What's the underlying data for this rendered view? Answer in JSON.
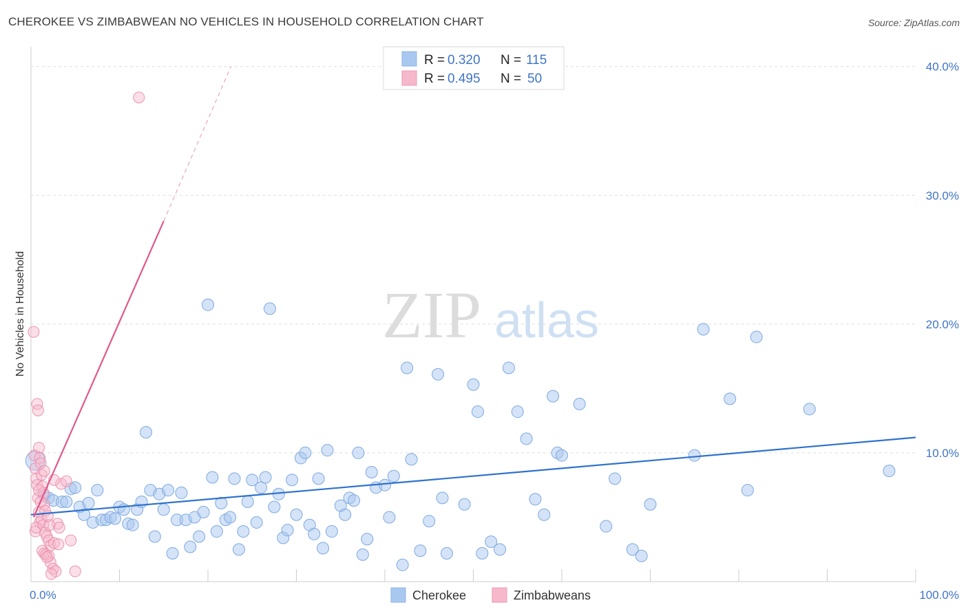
{
  "title": "CHEROKEE VS ZIMBABWEAN NO VEHICLES IN HOUSEHOLD CORRELATION CHART",
  "source": "Source: ZipAtlas.com",
  "watermark": {
    "zip": "ZIP",
    "atlas": "atlas"
  },
  "chart_data": {
    "type": "scatter",
    "title": "CHEROKEE VS ZIMBABWEAN NO VEHICLES IN HOUSEHOLD CORRELATION CHART",
    "xlabel": "",
    "ylabel": "No Vehicles in Household",
    "xlim": [
      0,
      100
    ],
    "ylim": [
      0,
      41
    ],
    "x_tick_labels": [
      "0.0%",
      "100.0%"
    ],
    "y_ticks": [
      10,
      20,
      30,
      40
    ],
    "y_tick_labels": [
      "10.0%",
      "20.0%",
      "30.0%",
      "40.0%"
    ],
    "grid": true,
    "legend_position": "top-center",
    "legend": [
      {
        "r_label": "R =",
        "r_value": "0.320",
        "n_label": "N =",
        "n_value": "115"
      },
      {
        "r_label": "R =",
        "r_value": "0.495",
        "n_label": "N =",
        "n_value": "50"
      }
    ],
    "bottom_legend": [
      "Cherokee",
      "Zimbabweans"
    ],
    "colors": {
      "cherokee": "#a9c8f0",
      "cherokee_line": "#2f72cc",
      "zimbabweans": "#f6b8cb",
      "zimbabweans_line": "#e0588a",
      "axis_text": "#3f74c8"
    },
    "series": [
      {
        "name": "Cherokee",
        "trend": {
          "x": [
            0,
            100
          ],
          "y": [
            5.2,
            11.2
          ]
        },
        "points": [
          [
            0.5,
            9.4
          ],
          [
            1.5,
            6.7
          ],
          [
            2,
            6.5
          ],
          [
            2.5,
            6.3
          ],
          [
            3.5,
            6.2
          ],
          [
            4,
            6.2
          ],
          [
            4.5,
            7.2
          ],
          [
            5,
            7.3
          ],
          [
            5.5,
            5.8
          ],
          [
            6,
            5.2
          ],
          [
            6.5,
            6.1
          ],
          [
            7,
            4.6
          ],
          [
            7.5,
            7.1
          ],
          [
            8,
            4.8
          ],
          [
            8.5,
            4.8
          ],
          [
            9,
            5
          ],
          [
            9.5,
            4.9
          ],
          [
            10,
            5.8
          ],
          [
            10.5,
            5.6
          ],
          [
            11,
            4.5
          ],
          [
            11.5,
            4.4
          ],
          [
            12,
            5.6
          ],
          [
            12.5,
            6.2
          ],
          [
            13,
            11.6
          ],
          [
            13.5,
            7.1
          ],
          [
            14,
            3.5
          ],
          [
            14.5,
            6.8
          ],
          [
            15,
            5.6
          ],
          [
            15.5,
            7.1
          ],
          [
            16,
            2.2
          ],
          [
            16.5,
            4.8
          ],
          [
            17,
            6.9
          ],
          [
            17.5,
            4.8
          ],
          [
            18,
            2.7
          ],
          [
            18.5,
            5
          ],
          [
            19,
            3.5
          ],
          [
            19.5,
            5.4
          ],
          [
            20,
            21.5
          ],
          [
            20.5,
            8.1
          ],
          [
            21,
            3.9
          ],
          [
            21.5,
            6.1
          ],
          [
            22,
            4.8
          ],
          [
            22.5,
            5
          ],
          [
            23,
            8
          ],
          [
            23.5,
            2.5
          ],
          [
            24,
            3.9
          ],
          [
            24.5,
            6.2
          ],
          [
            25,
            7.9
          ],
          [
            25.5,
            4.6
          ],
          [
            26,
            7.3
          ],
          [
            26.5,
            8.1
          ],
          [
            27,
            21.2
          ],
          [
            27.5,
            5.8
          ],
          [
            28,
            6.8
          ],
          [
            28.5,
            3.4
          ],
          [
            29,
            4
          ],
          [
            29.5,
            7.9
          ],
          [
            30,
            5.2
          ],
          [
            30.5,
            9.6
          ],
          [
            31,
            10
          ],
          [
            31.5,
            4.4
          ],
          [
            32,
            3.7
          ],
          [
            32.5,
            8
          ],
          [
            33,
            2.6
          ],
          [
            33.5,
            10.2
          ],
          [
            34,
            3.9
          ],
          [
            35,
            5.9
          ],
          [
            35.5,
            5.2
          ],
          [
            36,
            6.5
          ],
          [
            36.5,
            6.3
          ],
          [
            37,
            10
          ],
          [
            37.5,
            2.1
          ],
          [
            38,
            3.3
          ],
          [
            38.5,
            8.5
          ],
          [
            39,
            7.3
          ],
          [
            40,
            7.5
          ],
          [
            40.5,
            5
          ],
          [
            41,
            8.2
          ],
          [
            42,
            1.3
          ],
          [
            42.5,
            16.6
          ],
          [
            43,
            9.5
          ],
          [
            44,
            2.4
          ],
          [
            45,
            4.7
          ],
          [
            46,
            16.1
          ],
          [
            46.5,
            6.5
          ],
          [
            47,
            2.2
          ],
          [
            49,
            6
          ],
          [
            50,
            15.3
          ],
          [
            50.5,
            13.2
          ],
          [
            51,
            2.2
          ],
          [
            52,
            3.1
          ],
          [
            53,
            2.5
          ],
          [
            54,
            16.6
          ],
          [
            55,
            13.2
          ],
          [
            56,
            11.1
          ],
          [
            57,
            6.4
          ],
          [
            58,
            5.2
          ],
          [
            59,
            14.4
          ],
          [
            59.5,
            10
          ],
          [
            60,
            9.8
          ],
          [
            62,
            13.8
          ],
          [
            65,
            4.3
          ],
          [
            66,
            8
          ],
          [
            68,
            2.5
          ],
          [
            69,
            2
          ],
          [
            70,
            6
          ],
          [
            75,
            9.8
          ],
          [
            76,
            19.6
          ],
          [
            79,
            14.2
          ],
          [
            81,
            7.1
          ],
          [
            82,
            19
          ],
          [
            88,
            13.4
          ],
          [
            97,
            8.6
          ]
        ]
      },
      {
        "name": "Zimbabweans",
        "trend": {
          "x": [
            0.3,
            15
          ],
          "y": [
            5.0,
            28.0
          ]
        },
        "trend_extension": {
          "x": [
            15,
            22.6
          ],
          "y": [
            28.0,
            40.0
          ]
        },
        "points": [
          [
            0.3,
            19.4
          ],
          [
            0.4,
            9.8
          ],
          [
            0.5,
            8.8
          ],
          [
            0.6,
            8
          ],
          [
            0.7,
            7.5
          ],
          [
            0.8,
            6.5
          ],
          [
            0.9,
            5.4
          ],
          [
            1,
            4.6
          ],
          [
            0.5,
            3.9
          ],
          [
            0.6,
            4.2
          ],
          [
            0.7,
            13.8
          ],
          [
            0.8,
            13.3
          ],
          [
            0.9,
            10.4
          ],
          [
            1,
            9.6
          ],
          [
            1.1,
            9.2
          ],
          [
            1.2,
            8.3
          ],
          [
            1.3,
            7.4
          ],
          [
            1.4,
            6.9
          ],
          [
            1.5,
            6
          ],
          [
            1.6,
            5.5
          ],
          [
            1.2,
            4.8
          ],
          [
            1.4,
            4.4
          ],
          [
            1.6,
            3.8
          ],
          [
            1.8,
            3.5
          ],
          [
            2,
            3.2
          ],
          [
            2.2,
            2.8
          ],
          [
            1.3,
            2.4
          ],
          [
            1.5,
            2.2
          ],
          [
            1.7,
            2.1
          ],
          [
            2,
            2
          ],
          [
            2.2,
            1.5
          ],
          [
            2.5,
            1
          ],
          [
            2.8,
            0.8
          ],
          [
            3,
            4.5
          ],
          [
            3.2,
            4.2
          ],
          [
            3.4,
            7.6
          ],
          [
            4,
            7.8
          ],
          [
            4.5,
            3.2
          ],
          [
            5,
            0.8
          ],
          [
            2.6,
            3
          ],
          [
            2.1,
            4.4
          ],
          [
            1.9,
            5.1
          ],
          [
            1.1,
            6.2
          ],
          [
            0.9,
            7.1
          ],
          [
            1.5,
            8.6
          ],
          [
            2.3,
            0.6
          ],
          [
            1.8,
            1.9
          ],
          [
            3.1,
            2.9
          ],
          [
            12.2,
            37.6
          ],
          [
            2.6,
            7.9
          ]
        ]
      }
    ]
  }
}
